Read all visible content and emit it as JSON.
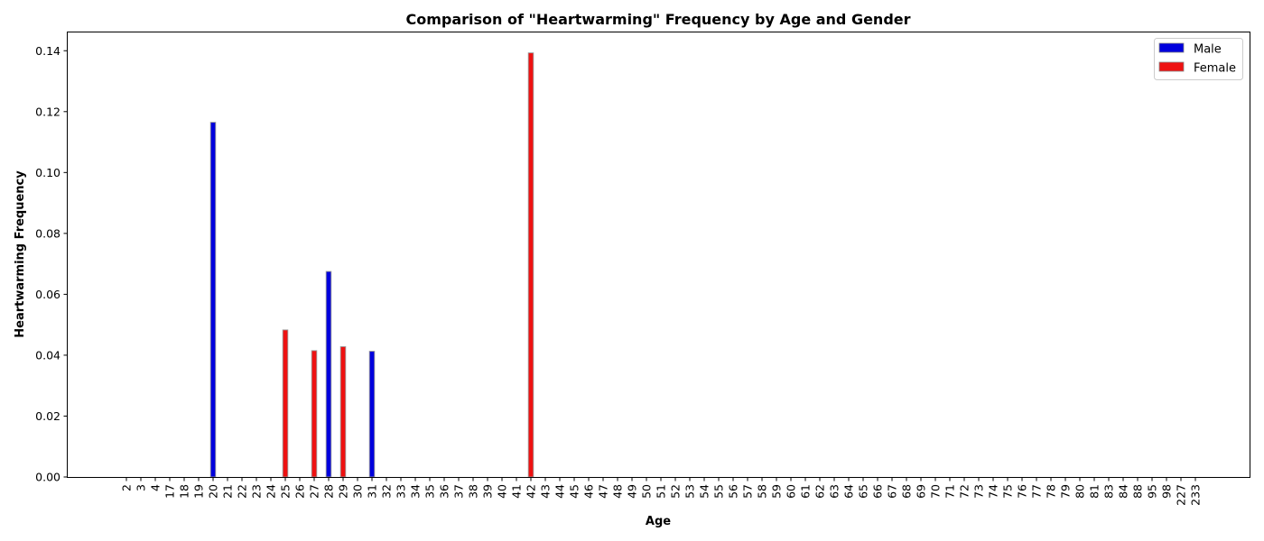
{
  "chart_data": {
    "type": "bar",
    "title": "Comparison of \"Heartwarming\" Frequency by Age and Gender",
    "xlabel": "Age",
    "ylabel": "Heartwarming Frequency",
    "ylim": [
      0,
      0.146
    ],
    "yticks": [
      "0.00",
      "0.02",
      "0.04",
      "0.06",
      "0.08",
      "0.10",
      "0.12",
      "0.14"
    ],
    "grid": false,
    "legend_position": "top-right",
    "categories": [
      "2",
      "3",
      "4",
      "17",
      "18",
      "19",
      "20",
      "21",
      "22",
      "23",
      "24",
      "25",
      "26",
      "27",
      "28",
      "29",
      "30",
      "31",
      "32",
      "33",
      "34",
      "35",
      "36",
      "37",
      "38",
      "39",
      "40",
      "41",
      "42",
      "43",
      "44",
      "45",
      "46",
      "47",
      "48",
      "49",
      "50",
      "51",
      "52",
      "53",
      "54",
      "55",
      "56",
      "57",
      "58",
      "59",
      "60",
      "61",
      "62",
      "63",
      "64",
      "65",
      "66",
      "67",
      "68",
      "69",
      "70",
      "71",
      "72",
      "73",
      "74",
      "75",
      "76",
      "77",
      "78",
      "79",
      "80",
      "81",
      "83",
      "84",
      "88",
      "95",
      "98",
      "227",
      "233"
    ],
    "series": [
      {
        "name": "Male",
        "color": "#0000dd",
        "values": [
          0,
          0,
          0,
          0,
          0,
          0,
          0.1165,
          0,
          0,
          0,
          0,
          0,
          0,
          0,
          0.0675,
          0,
          0,
          0.0413,
          0,
          0,
          0,
          0,
          0,
          0,
          0,
          0,
          0,
          0,
          0,
          0,
          0,
          0,
          0,
          0,
          0,
          0,
          0,
          0,
          0,
          0,
          0,
          0,
          0,
          0,
          0,
          0,
          0,
          0,
          0,
          0,
          0,
          0,
          0,
          0,
          0,
          0,
          0,
          0,
          0,
          0,
          0,
          0,
          0,
          0,
          0,
          0,
          0,
          0,
          0,
          0,
          0,
          0,
          0,
          0,
          0
        ]
      },
      {
        "name": "Female",
        "color": "#ee1111",
        "values": [
          0,
          0,
          0,
          0,
          0,
          0,
          0,
          0,
          0,
          0,
          0,
          0.0483,
          0,
          0.0415,
          0,
          0.0428,
          0,
          0,
          0,
          0,
          0,
          0,
          0,
          0,
          0,
          0,
          0,
          0,
          0.1393,
          0,
          0,
          0,
          0,
          0,
          0,
          0,
          0,
          0,
          0,
          0,
          0,
          0,
          0,
          0,
          0,
          0,
          0,
          0,
          0,
          0,
          0,
          0,
          0,
          0,
          0,
          0,
          0,
          0,
          0,
          0,
          0,
          0,
          0,
          0,
          0,
          0,
          0,
          0,
          0,
          0,
          0,
          0,
          0,
          0,
          0
        ]
      }
    ]
  }
}
